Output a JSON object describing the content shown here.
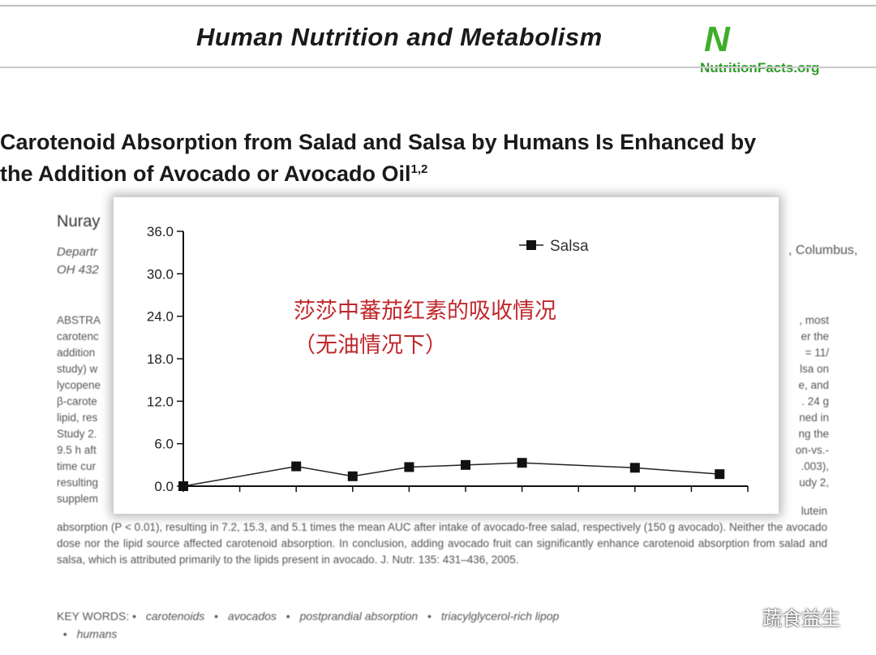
{
  "header": {
    "journal_title": "Human Nutrition and Metabolism",
    "logo_mark": "N",
    "logo_text": "NutritionFacts.org"
  },
  "paper": {
    "title_line1": "Carotenoid Absorption from Salad and Salsa by Humans Is Enhanced by",
    "title_line2": "the Addition of Avocado or Avocado Oil",
    "title_sup": "1,2",
    "author_fragment": "Nuray",
    "dept_fragment_line1": "Departr",
    "dept_fragment_line2": "OH 432",
    "dept_right": ", Columbus,",
    "abstract_left": [
      "ABSTRA",
      "carotenc",
      "addition",
      "study) w",
      "lycopene",
      "β-carote",
      "lipid, res",
      "Study 2.",
      "9.5 h aft",
      "time cur",
      "resulting",
      "supplem"
    ],
    "abstract_right": [
      ", most",
      "er the",
      "= 11/",
      "lsa on",
      "e, and",
      ". 24 g",
      "ned in",
      "ng the",
      "on-vs.-",
      ".003),",
      "udy 2,"
    ],
    "abstract_bottom": "absorption (P < 0.01), resulting in 7.2, 15.3, and 5.1 times the mean AUC after intake of avocado-free salad, respectively (150 g avocado). Neither the avocado dose nor the lipid source affected carotenoid absorption. In conclusion, adding avocado fruit can significantly enhance carotenoid absorption from salad and salsa, which is attributed primarily to the lipids present in avocado.    J. Nutr. 135: 431–436, 2005.",
    "abstract_bottom_right": "lutein",
    "keywords_label": "KEY WORDS:",
    "keywords": [
      "carotenoids",
      "avocados",
      "postprandial absorption",
      "triacylglycerol-rich lipop"
    ],
    "keywords_line2": "humans"
  },
  "annotation": {
    "line1": "莎莎中蕃茄红素的吸收情况",
    "line2": "（无油情况下）",
    "color": "#c0282b"
  },
  "watermark": {
    "text": "蔬食益生"
  },
  "chart_data": {
    "type": "line",
    "title": "",
    "xlabel": "",
    "ylabel": "",
    "ylim": [
      0,
      36
    ],
    "yticks": [
      "0.0",
      "6.0",
      "12.0",
      "18.0",
      "24.0",
      "30.0",
      "36.0"
    ],
    "x_tick_count": 10,
    "x": [
      0,
      2,
      3,
      4,
      5,
      6,
      8,
      9.5
    ],
    "xlim": [
      0,
      10
    ],
    "series": [
      {
        "name": "Salsa",
        "marker": "square",
        "values": [
          0.0,
          2.8,
          1.4,
          2.7,
          3.0,
          3.3,
          2.6,
          1.7
        ]
      }
    ],
    "legend_position": "top-right",
    "grid": false
  }
}
